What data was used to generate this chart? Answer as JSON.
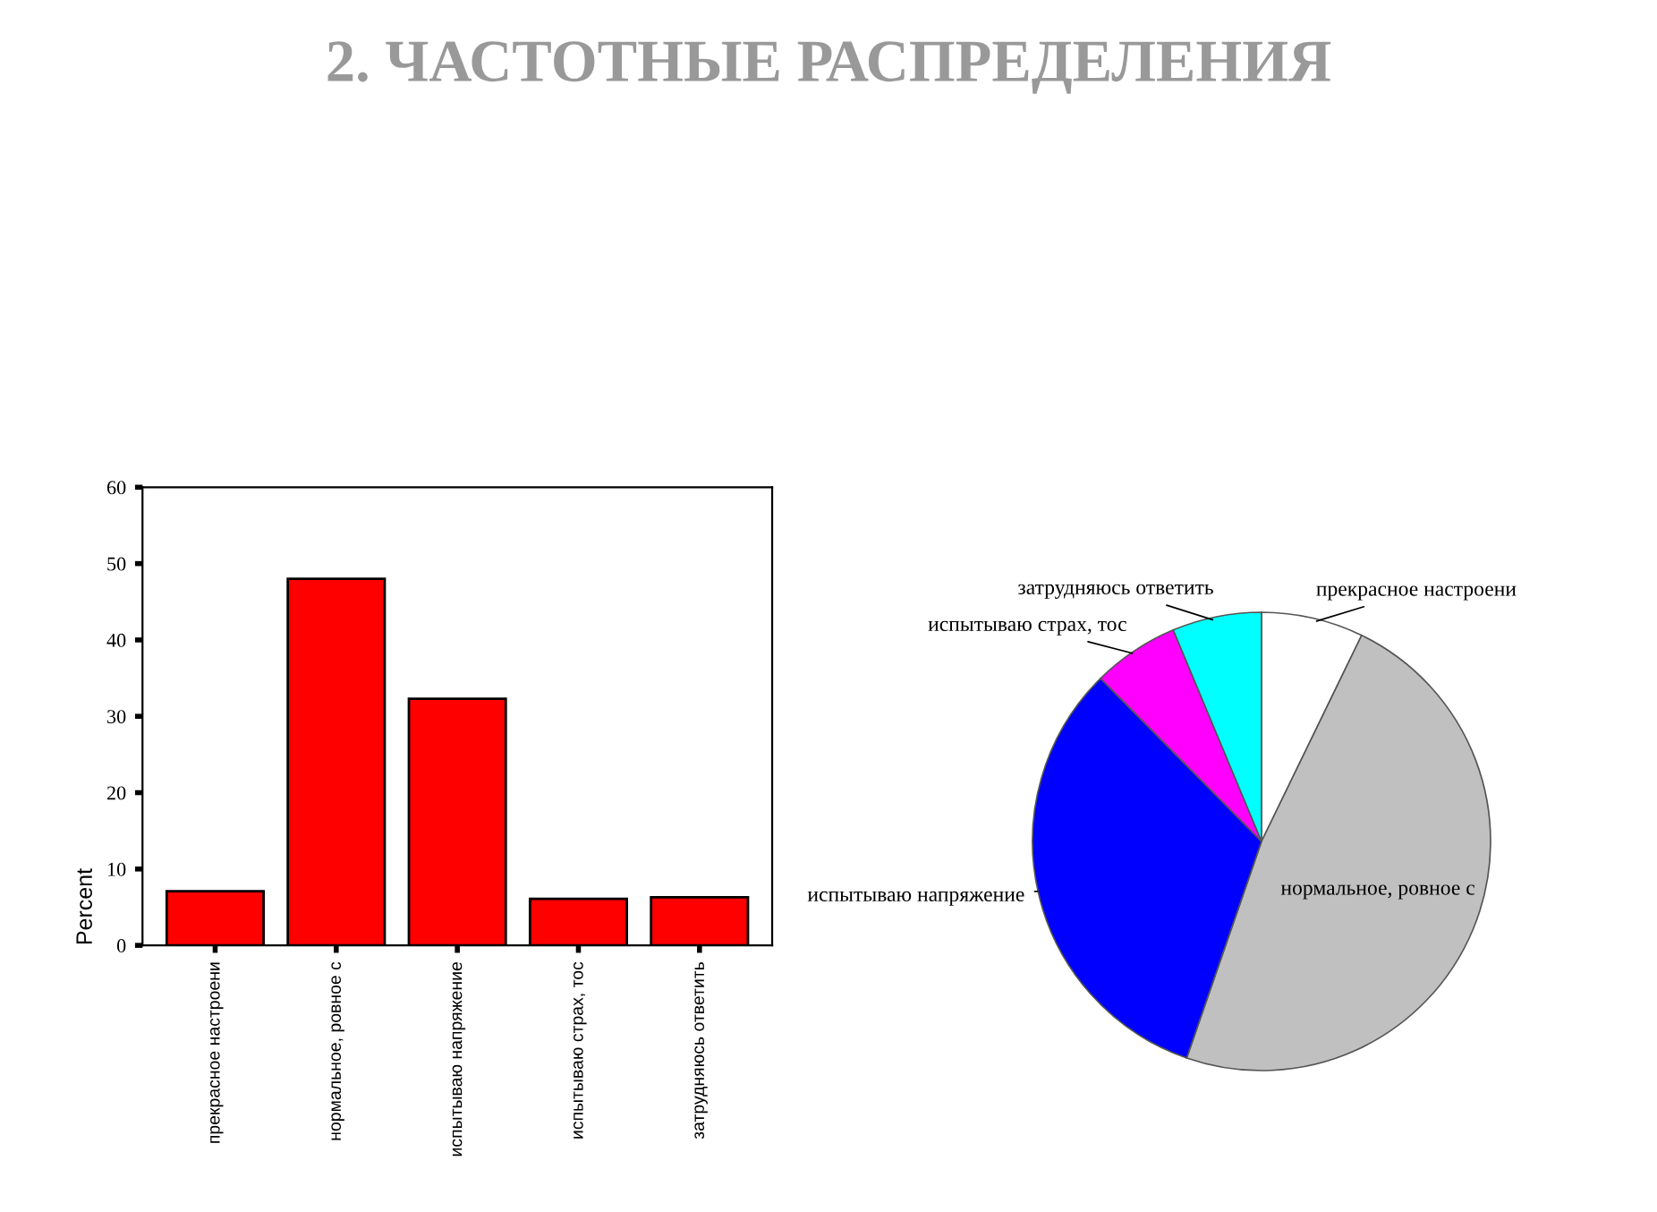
{
  "chart_data": [
    {
      "type": "bar",
      "title": "2. ЧАСТОТНЫЕ РАСПРЕДЕЛЕНИЯ",
      "ylabel": "Percent",
      "categories": [
        "прекрасное настроени",
        "нормальное, ровное с",
        "испытываю напряжение",
        "испытываю страх, тос",
        "затрудняюсь ответить"
      ],
      "values": [
        7.1,
        48,
        32.3,
        6.1,
        6.3
      ],
      "color": "#ff0000",
      "ylim": [
        0,
        60
      ],
      "yticks": [
        0,
        10,
        20,
        30,
        40,
        50,
        60
      ],
      "grid": false
    },
    {
      "type": "pie",
      "categories": [
        "прекрасное настроени",
        "нормальное, ровное с",
        "испытываю напряжение",
        "испытываю страх, тос",
        "затрудняюсь ответить"
      ],
      "values": [
        7.2,
        48.1,
        32.3,
        6.1,
        6.3
      ],
      "colors": [
        "#ffffff",
        "#c0c0c0",
        "#0000ff",
        "#ff00ff",
        "#00ffff"
      ]
    }
  ]
}
